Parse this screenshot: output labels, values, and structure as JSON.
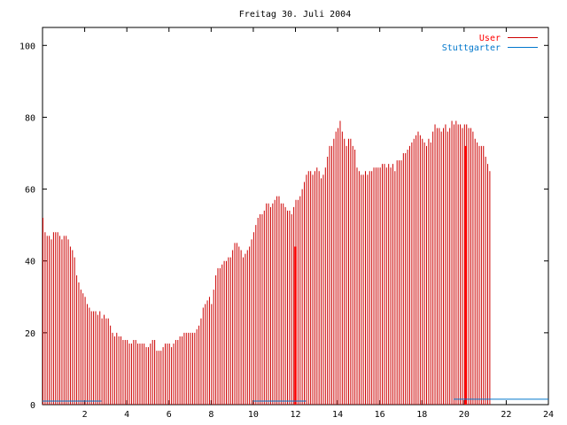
{
  "chart_data": {
    "type": "bar",
    "title": "Freitag 30. Juli 2004",
    "xlabel": "",
    "ylabel": "",
    "xlim": [
      0,
      24
    ],
    "ylim": [
      0,
      105
    ],
    "x_ticks": [
      "2",
      "4",
      "6",
      "8",
      "10",
      "12",
      "14",
      "16",
      "18",
      "20",
      "22",
      "24"
    ],
    "y_ticks": [
      "0",
      "20",
      "40",
      "60",
      "80",
      "100"
    ],
    "grid": false,
    "legend_position": "top-right",
    "colors": {
      "user": "#cc0000",
      "stuttgarter": "#0077cc",
      "highlight": "#ff0000"
    },
    "series": [
      {
        "name": "User",
        "interval": 0.1,
        "values": [
          52,
          48,
          47,
          47,
          46,
          48,
          48,
          48,
          47,
          46,
          47,
          47,
          46,
          44,
          43,
          41,
          36,
          34,
          32,
          31,
          30,
          28,
          27,
          26,
          26,
          26,
          25,
          26,
          24,
          25,
          24,
          24,
          22,
          20,
          19,
          20,
          19,
          19,
          18,
          18,
          18,
          17,
          17,
          18,
          18,
          17,
          17,
          17,
          17,
          16,
          16,
          17,
          18,
          18,
          15,
          15,
          15,
          16,
          17,
          17,
          17,
          16,
          17,
          18,
          18,
          19,
          19,
          20,
          20,
          20,
          20,
          20,
          20,
          21,
          22,
          24,
          27,
          28,
          29,
          30,
          28,
          32,
          36,
          38,
          38,
          39,
          40,
          40,
          41,
          41,
          43,
          45,
          45,
          44,
          43,
          41,
          42,
          43,
          44,
          46,
          48,
          50,
          52,
          53,
          53,
          54,
          56,
          56,
          55,
          56,
          57,
          58,
          58,
          56,
          56,
          55,
          54,
          54,
          53,
          55,
          57,
          57,
          58,
          60,
          62,
          64,
          65,
          65,
          64,
          65,
          66,
          65,
          63,
          64,
          66,
          69,
          72,
          72,
          74,
          76,
          77,
          79,
          76,
          74,
          72,
          74,
          74,
          72,
          71,
          66,
          65,
          64,
          64,
          65,
          64,
          65,
          65,
          66,
          66,
          66,
          66,
          67,
          67,
          66,
          67,
          66,
          67,
          65,
          68,
          68,
          68,
          70,
          70,
          71,
          72,
          73,
          74,
          75,
          76,
          75,
          74,
          73,
          72,
          74,
          73,
          76,
          78,
          77,
          77,
          76,
          77,
          78,
          76,
          77,
          79,
          78,
          79,
          78,
          78,
          77,
          78,
          78,
          77,
          77,
          76,
          74,
          73,
          72,
          72,
          72,
          69,
          67,
          65
        ]
      },
      {
        "name": "Stuttgarter",
        "segments": [
          [
            0,
            2.8,
            1
          ],
          [
            10,
            12.5,
            1
          ],
          [
            19.5,
            24,
            1.5
          ]
        ]
      }
    ],
    "highlight_bars": [
      [
        12,
        44
      ],
      [
        20.08,
        72
      ]
    ]
  }
}
